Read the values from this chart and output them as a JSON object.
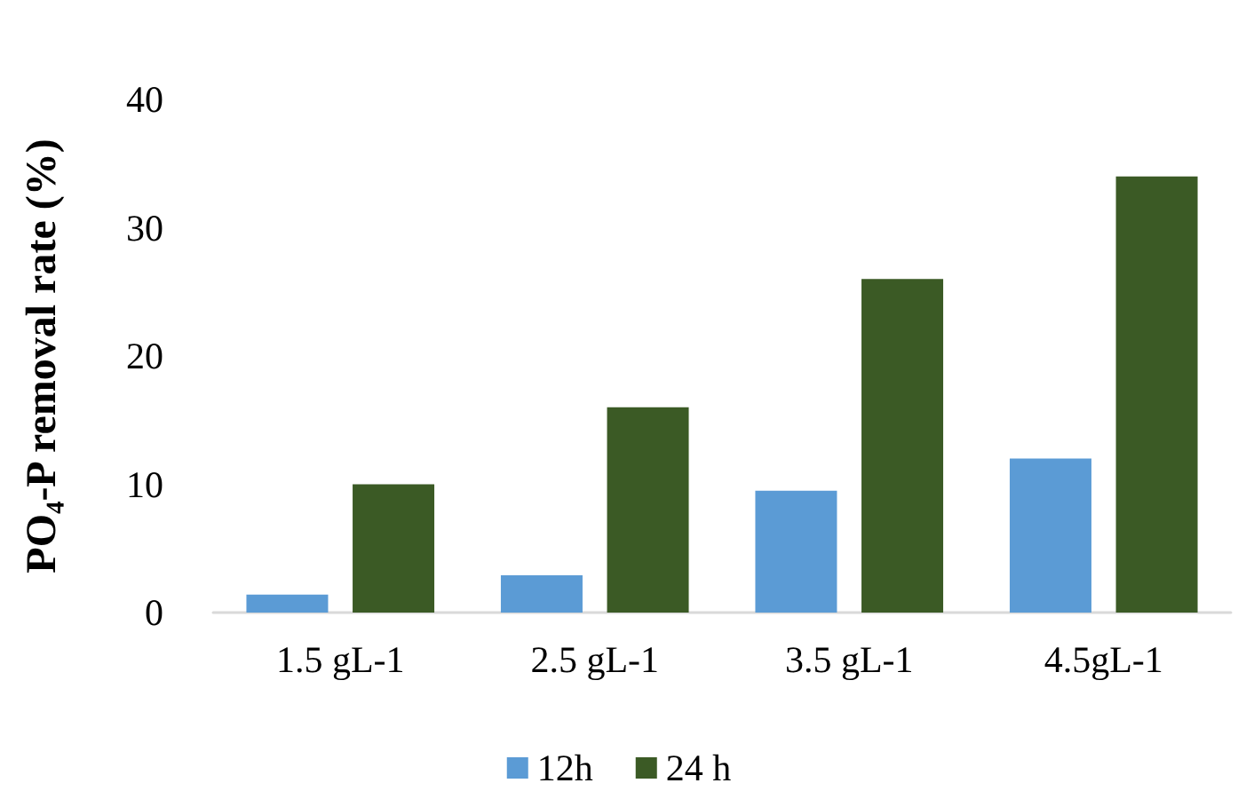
{
  "chart_data": {
    "type": "bar",
    "ylabel": "PO₄-P removal rate (%)",
    "categories": [
      "1.5 gL-1",
      "2.5 gL-1",
      "3.5 gL-1",
      "4.5gL-1"
    ],
    "series": [
      {
        "name": "12h",
        "color": "#5b9bd5",
        "values": [
          1.4,
          2.9,
          9.5,
          12
        ]
      },
      {
        "name": "24 h",
        "color": "#3b5a25",
        "values": [
          10,
          16,
          26,
          34
        ]
      }
    ],
    "ylim": [
      0,
      40
    ],
    "yticks": [
      0,
      10,
      20,
      30,
      40
    ],
    "grid": false,
    "legend": "bottom"
  }
}
